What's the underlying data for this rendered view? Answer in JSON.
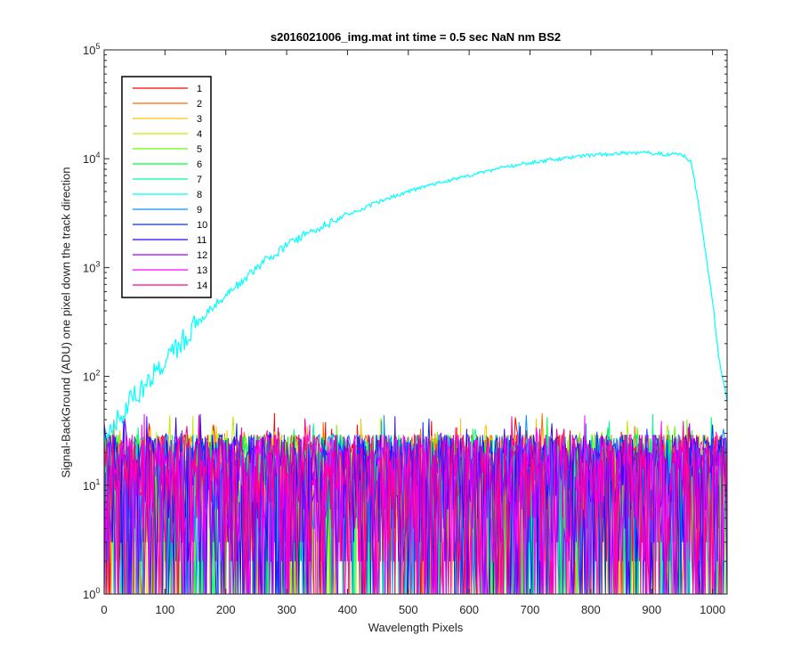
{
  "chart_data": {
    "type": "line",
    "title": "s2016021006_img.mat int time = 0.5 sec  NaN nm BS2",
    "xlabel": "Wavelength Pixels",
    "ylabel": "Signal-BackGround (ADU) one pixel down the track direction",
    "xlim": [
      0,
      1024
    ],
    "ylim": [
      1,
      100000
    ],
    "yscale": "log",
    "grid": false,
    "legend_position": "top-left",
    "x_ticks": [
      0,
      100,
      200,
      300,
      400,
      500,
      600,
      700,
      800,
      900,
      1000
    ],
    "y_ticks": [
      {
        "value": 1,
        "base": "10",
        "exp": "0"
      },
      {
        "value": 10,
        "base": "10",
        "exp": "1"
      },
      {
        "value": 100,
        "base": "10",
        "exp": "2"
      },
      {
        "value": 1000,
        "base": "10",
        "exp": "3"
      },
      {
        "value": 10000,
        "base": "10",
        "exp": "4"
      },
      {
        "value": 100000,
        "base": "10",
        "exp": "5"
      }
    ],
    "series": [
      {
        "name": "1",
        "color": "#ff0000",
        "noise": true
      },
      {
        "name": "2",
        "color": "#ff6a00",
        "noise": true
      },
      {
        "name": "3",
        "color": "#ffc400",
        "noise": true
      },
      {
        "name": "4",
        "color": "#c8e600",
        "noise": true
      },
      {
        "name": "5",
        "color": "#66ff00",
        "noise": true
      },
      {
        "name": "6",
        "color": "#00ff33",
        "noise": true
      },
      {
        "name": "7",
        "color": "#00ff99",
        "noise": true
      },
      {
        "name": "8",
        "color": "#00ffff",
        "noise": false,
        "x": [
          0,
          20,
          40,
          60,
          80,
          100,
          120,
          150,
          180,
          220,
          260,
          300,
          350,
          400,
          450,
          500,
          550,
          600,
          650,
          700,
          750,
          800,
          850,
          880,
          900,
          930,
          950,
          965,
          980,
          1000,
          1010,
          1024
        ],
        "values": [
          30,
          40,
          55,
          75,
          100,
          130,
          180,
          300,
          450,
          700,
          1100,
          1600,
          2300,
          3000,
          4000,
          5000,
          6000,
          7000,
          8200,
          9200,
          10000,
          10800,
          11200,
          11500,
          11300,
          11000,
          11000,
          9500,
          3000,
          500,
          150,
          60
        ]
      },
      {
        "name": "9",
        "color": "#0094ff",
        "noise": true
      },
      {
        "name": "10",
        "color": "#0033ff",
        "noise": true
      },
      {
        "name": "11",
        "color": "#3300ff",
        "noise": true
      },
      {
        "name": "12",
        "color": "#9900ff",
        "noise": true
      },
      {
        "name": "13",
        "color": "#ff00ff",
        "noise": true
      },
      {
        "name": "14",
        "color": "#ff0088",
        "noise": true
      }
    ]
  }
}
